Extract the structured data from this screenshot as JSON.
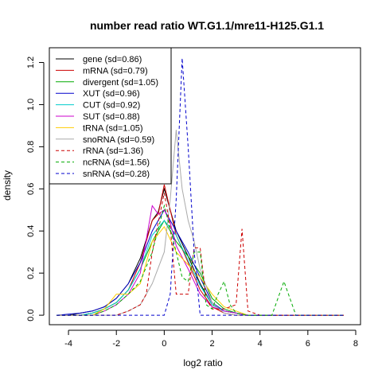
{
  "chart_data": {
    "type": "line",
    "title": "number read ratio WT.G1.1/mre11-H125.G1.1",
    "xlabel": "log2 ratio",
    "ylabel": "density",
    "xlim": [
      -4.8,
      8.2
    ],
    "ylim": [
      -0.045,
      1.27
    ],
    "x_ticks": [
      -4,
      -2,
      0,
      2,
      4,
      6,
      8
    ],
    "x_tick_labels": [
      "-4",
      "-2",
      "0",
      "2",
      "4",
      "6",
      "8"
    ],
    "y_ticks": [
      0.0,
      0.2,
      0.4,
      0.6,
      0.8,
      1.0,
      1.2
    ],
    "y_tick_labels": [
      "0.0",
      "0.2",
      "0.4",
      "0.6",
      "0.8",
      "1.0",
      "1.2"
    ],
    "grid": false,
    "legend_position": "top-left",
    "series": [
      {
        "name": "gene (sd=0.86)",
        "color": "#000000",
        "dash": "solid",
        "x": [
          -4.5,
          -4.0,
          -3.5,
          -3.0,
          -2.5,
          -2.0,
          -1.5,
          -1.0,
          -0.5,
          -0.25,
          0.0,
          0.25,
          0.5,
          1.0,
          1.5,
          2.0,
          2.5,
          3.0,
          3.5,
          4.0,
          4.5,
          5.0,
          5.5,
          6.0,
          6.5,
          7.0,
          7.5
        ],
        "y": [
          0.0,
          0.0,
          0.01,
          0.02,
          0.04,
          0.08,
          0.15,
          0.27,
          0.45,
          0.49,
          0.6,
          0.5,
          0.4,
          0.28,
          0.15,
          0.05,
          0.02,
          0.01,
          0.0,
          0.0,
          0.0,
          0.0,
          0.0,
          0.0,
          0.0,
          0.0,
          0.0
        ]
      },
      {
        "name": "mRNA (sd=0.79)",
        "color": "#cc0000",
        "dash": "solid",
        "x": [
          -4.5,
          -3.5,
          -3.0,
          -2.5,
          -2.0,
          -1.5,
          -1.0,
          -0.5,
          -0.25,
          0.0,
          0.25,
          0.5,
          1.0,
          1.5,
          2.0,
          2.5,
          3.0,
          4.0,
          7.5
        ],
        "y": [
          0.0,
          0.0,
          0.01,
          0.03,
          0.06,
          0.12,
          0.25,
          0.45,
          0.48,
          0.62,
          0.5,
          0.38,
          0.25,
          0.12,
          0.04,
          0.01,
          0.0,
          0.0,
          0.0
        ]
      },
      {
        "name": "divergent (sd=1.05)",
        "color": "#00aa00",
        "dash": "solid",
        "x": [
          -4.5,
          -3.5,
          -3.0,
          -2.5,
          -2.0,
          -1.5,
          -1.0,
          -0.5,
          0.0,
          0.5,
          1.0,
          1.5,
          2.0,
          2.5,
          3.0,
          3.5,
          4.0,
          7.5
        ],
        "y": [
          0.0,
          0.0,
          0.01,
          0.03,
          0.06,
          0.12,
          0.22,
          0.35,
          0.45,
          0.35,
          0.28,
          0.2,
          0.08,
          0.03,
          0.01,
          0.0,
          0.0,
          0.0
        ]
      },
      {
        "name": "XUT (sd=0.96)",
        "color": "#0000cc",
        "dash": "solid",
        "x": [
          -4.5,
          -3.5,
          -3.0,
          -2.5,
          -2.0,
          -1.5,
          -1.0,
          -0.5,
          0.0,
          0.5,
          1.0,
          1.5,
          2.0,
          2.5,
          3.0,
          3.5,
          7.5
        ],
        "y": [
          0.0,
          0.01,
          0.02,
          0.04,
          0.08,
          0.15,
          0.25,
          0.4,
          0.5,
          0.4,
          0.3,
          0.18,
          0.06,
          0.02,
          0.01,
          0.0,
          0.0
        ]
      },
      {
        "name": "CUT (sd=0.92)",
        "color": "#00cccc",
        "dash": "solid",
        "x": [
          -4.5,
          -3.5,
          -3.0,
          -2.5,
          -2.0,
          -1.5,
          -1.0,
          -0.5,
          0.0,
          0.5,
          1.0,
          1.5,
          2.0,
          2.5,
          3.0,
          3.5,
          7.5
        ],
        "y": [
          0.0,
          0.0,
          0.01,
          0.03,
          0.06,
          0.12,
          0.22,
          0.38,
          0.45,
          0.38,
          0.26,
          0.14,
          0.05,
          0.02,
          0.01,
          0.0,
          0.0
        ]
      },
      {
        "name": "SUT (sd=0.88)",
        "color": "#cc00cc",
        "dash": "solid",
        "x": [
          -4.5,
          -3.0,
          -2.5,
          -2.0,
          -1.5,
          -1.0,
          -0.5,
          -0.25,
          0.0,
          0.25,
          0.5,
          1.0,
          1.5,
          2.0,
          2.5,
          3.0,
          3.5,
          7.5
        ],
        "y": [
          0.0,
          0.0,
          0.02,
          0.05,
          0.1,
          0.2,
          0.52,
          0.48,
          0.5,
          0.44,
          0.33,
          0.22,
          0.1,
          0.04,
          0.02,
          0.01,
          0.0,
          0.0
        ]
      },
      {
        "name": "tRNA (sd=1.05)",
        "color": "#ffcc00",
        "dash": "solid",
        "x": [
          -4.5,
          -3.0,
          -2.5,
          -2.0,
          -1.5,
          -1.0,
          -0.5,
          0.0,
          0.5,
          1.0,
          1.5,
          2.0,
          2.5,
          3.0,
          3.5,
          4.0,
          7.5
        ],
        "y": [
          0.0,
          0.0,
          0.03,
          0.1,
          0.1,
          0.15,
          0.35,
          0.42,
          0.3,
          0.24,
          0.18,
          0.1,
          0.04,
          0.02,
          0.0,
          0.0,
          0.0
        ]
      },
      {
        "name": "snoRNA (sd=0.59)",
        "color": "#aaaaaa",
        "dash": "solid",
        "x": [
          -4.5,
          -2.0,
          -1.5,
          -1.0,
          -0.5,
          0.0,
          0.25,
          0.5,
          0.75,
          1.0,
          1.25,
          1.5,
          2.0,
          2.5,
          3.0,
          7.5
        ],
        "y": [
          0.0,
          0.0,
          0.02,
          0.05,
          0.15,
          0.3,
          0.55,
          0.88,
          0.6,
          0.45,
          0.35,
          0.22,
          0.06,
          0.01,
          0.0,
          0.0
        ]
      },
      {
        "name": "rRNA (sd=1.36)",
        "color": "#cc0000",
        "dash": "dashed",
        "x": [
          -4.5,
          -2.0,
          -1.5,
          -1.0,
          -0.75,
          -0.5,
          -0.25,
          0.0,
          0.25,
          0.5,
          0.75,
          1.0,
          1.25,
          1.5,
          1.75,
          2.0,
          2.5,
          3.0,
          3.25,
          3.5,
          4.0,
          7.5
        ],
        "y": [
          0.0,
          0.0,
          0.02,
          0.05,
          0.1,
          0.3,
          0.44,
          0.58,
          0.42,
          0.1,
          0.1,
          0.1,
          0.32,
          0.32,
          0.08,
          0.03,
          0.03,
          0.05,
          0.41,
          0.02,
          0.0,
          0.0
        ]
      },
      {
        "name": "ncRNA (sd=1.56)",
        "color": "#00aa00",
        "dash": "dashed",
        "x": [
          -4.5,
          -3.0,
          -2.5,
          -2.0,
          -1.5,
          -1.0,
          -0.5,
          0.0,
          0.5,
          0.75,
          1.0,
          1.25,
          1.5,
          1.75,
          2.0,
          2.25,
          2.5,
          2.75,
          3.0,
          3.5,
          4.0,
          4.5,
          4.75,
          5.0,
          5.25,
          5.5,
          7.5
        ],
        "y": [
          0.0,
          0.0,
          0.02,
          0.05,
          0.1,
          0.16,
          0.3,
          0.52,
          0.3,
          0.18,
          0.16,
          0.3,
          0.3,
          0.05,
          0.03,
          0.1,
          0.16,
          0.05,
          0.01,
          0.0,
          0.0,
          0.0,
          0.08,
          0.16,
          0.08,
          0.0,
          0.0
        ]
      },
      {
        "name": "snRNA (sd=0.28)",
        "color": "#0000cc",
        "dash": "dashed",
        "x": [
          -4.5,
          -0.25,
          0.0,
          0.25,
          0.5,
          0.75,
          1.0,
          1.25,
          1.5,
          1.75,
          7.5
        ],
        "y": [
          0.0,
          0.0,
          0.0,
          0.1,
          0.55,
          1.22,
          0.8,
          0.3,
          0.0,
          0.0,
          0.0
        ]
      }
    ]
  }
}
